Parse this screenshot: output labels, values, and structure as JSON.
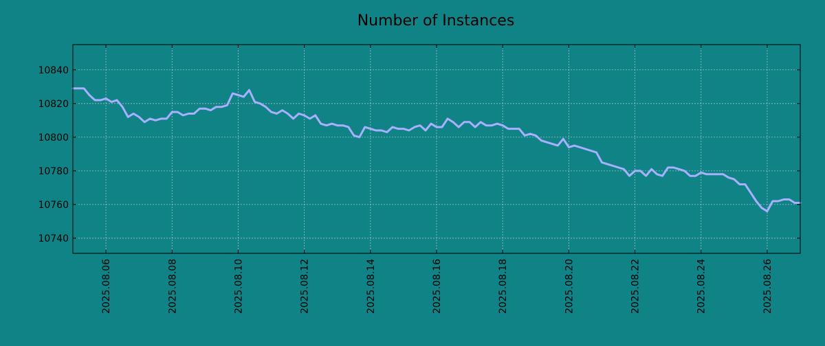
{
  "colors": {
    "background": "#108386",
    "series": "#a9b0ff"
  },
  "chart_data": {
    "type": "line",
    "title": "Number of Instances",
    "xlabel": "",
    "ylabel": "",
    "grid": true,
    "legend": "none",
    "xlim": [
      "2025-08-05",
      "2025-08-27"
    ],
    "ylim": [
      10731,
      10855
    ],
    "x_ticks": [
      "2025.08.06",
      "2025.08.08",
      "2025.08.10",
      "2025.08.12",
      "2025.08.14",
      "2025.08.16",
      "2025.08.18",
      "2025.08.20",
      "2025.08.22",
      "2025.08.24",
      "2025.08.26"
    ],
    "y_ticks": [
      10740,
      10760,
      10780,
      10800,
      10820,
      10840
    ],
    "series": [
      {
        "x": [
          "2025-08-05T00:00",
          "2025-08-05T08:00",
          "2025-08-05T12:00",
          "2025-08-05T16:00",
          "2025-08-05T20:00",
          "2025-08-06T00:00",
          "2025-08-06T04:00",
          "2025-08-06T08:00",
          "2025-08-06T12:00",
          "2025-08-06T16:00",
          "2025-08-06T20:00",
          "2025-08-07T00:00",
          "2025-08-07T04:00",
          "2025-08-07T08:00",
          "2025-08-07T12:00",
          "2025-08-07T16:00",
          "2025-08-07T20:00",
          "2025-08-08T00:00",
          "2025-08-08T04:00",
          "2025-08-08T08:00",
          "2025-08-08T12:00",
          "2025-08-08T16:00",
          "2025-08-08T20:00",
          "2025-08-09T00:00",
          "2025-08-09T04:00",
          "2025-08-09T08:00",
          "2025-08-09T12:00",
          "2025-08-09T16:00",
          "2025-08-09T20:00",
          "2025-08-10T00:00",
          "2025-08-10T04:00",
          "2025-08-10T08:00",
          "2025-08-10T12:00",
          "2025-08-10T16:00",
          "2025-08-10T20:00",
          "2025-08-11T00:00",
          "2025-08-11T04:00",
          "2025-08-11T08:00",
          "2025-08-11T12:00",
          "2025-08-11T16:00",
          "2025-08-11T20:00",
          "2025-08-12T00:00",
          "2025-08-12T04:00",
          "2025-08-12T08:00",
          "2025-08-12T12:00",
          "2025-08-12T16:00",
          "2025-08-12T20:00",
          "2025-08-13T00:00",
          "2025-08-13T04:00",
          "2025-08-13T08:00",
          "2025-08-13T12:00",
          "2025-08-13T16:00",
          "2025-08-13T20:00",
          "2025-08-14T00:00",
          "2025-08-14T04:00",
          "2025-08-14T08:00",
          "2025-08-14T12:00",
          "2025-08-14T16:00",
          "2025-08-14T20:00",
          "2025-08-15T00:00",
          "2025-08-15T04:00",
          "2025-08-15T08:00",
          "2025-08-15T12:00",
          "2025-08-15T16:00",
          "2025-08-15T20:00",
          "2025-08-16T00:00",
          "2025-08-16T04:00",
          "2025-08-16T08:00",
          "2025-08-16T12:00",
          "2025-08-16T16:00",
          "2025-08-16T20:00",
          "2025-08-17T00:00",
          "2025-08-17T04:00",
          "2025-08-17T08:00",
          "2025-08-17T12:00",
          "2025-08-17T16:00",
          "2025-08-17T20:00",
          "2025-08-18T00:00",
          "2025-08-18T04:00",
          "2025-08-18T08:00",
          "2025-08-18T12:00",
          "2025-08-18T16:00",
          "2025-08-18T20:00",
          "2025-08-19T00:00",
          "2025-08-19T04:00",
          "2025-08-19T08:00",
          "2025-08-19T12:00",
          "2025-08-19T16:00",
          "2025-08-19T20:00",
          "2025-08-20T00:00",
          "2025-08-20T04:00",
          "2025-08-20T08:00",
          "2025-08-20T12:00",
          "2025-08-20T16:00",
          "2025-08-20T20:00",
          "2025-08-21T00:00",
          "2025-08-21T04:00",
          "2025-08-21T08:00",
          "2025-08-21T12:00",
          "2025-08-21T16:00",
          "2025-08-21T20:00",
          "2025-08-22T00:00",
          "2025-08-22T04:00",
          "2025-08-22T08:00",
          "2025-08-22T12:00",
          "2025-08-22T16:00",
          "2025-08-22T20:00",
          "2025-08-23T00:00",
          "2025-08-23T04:00",
          "2025-08-23T08:00",
          "2025-08-23T12:00",
          "2025-08-23T16:00",
          "2025-08-23T20:00",
          "2025-08-24T00:00",
          "2025-08-24T04:00",
          "2025-08-24T08:00",
          "2025-08-24T12:00",
          "2025-08-24T16:00",
          "2025-08-24T20:00",
          "2025-08-25T00:00",
          "2025-08-25T04:00",
          "2025-08-25T08:00",
          "2025-08-25T12:00",
          "2025-08-25T16:00",
          "2025-08-25T20:00",
          "2025-08-26T00:00",
          "2025-08-26T04:00",
          "2025-08-26T08:00",
          "2025-08-26T12:00",
          "2025-08-26T16:00",
          "2025-08-26T20:00",
          "2025-08-27T00:00"
        ],
        "y": [
          10829,
          10829,
          10825,
          10822,
          10822,
          10823,
          10821,
          10822,
          10818,
          10812,
          10814,
          10812,
          10809,
          10811,
          10810,
          10811,
          10811,
          10815,
          10815,
          10813,
          10814,
          10814,
          10817,
          10817,
          10816,
          10818,
          10818,
          10819,
          10826,
          10825,
          10824,
          10828,
          10821,
          10820,
          10818,
          10815,
          10814,
          10816,
          10814,
          10811,
          10814,
          10813,
          10811,
          10813,
          10808,
          10807,
          10808,
          10807,
          10807,
          10806,
          10801,
          10800,
          10806,
          10805,
          10804,
          10804,
          10803,
          10806,
          10805,
          10805,
          10804,
          10806,
          10807,
          10804,
          10808,
          10806,
          10806,
          10811,
          10809,
          10806,
          10809,
          10809,
          10806,
          10809,
          10807,
          10807,
          10808,
          10807,
          10805,
          10805,
          10805,
          10801,
          10802,
          10801,
          10798,
          10797,
          10796,
          10795,
          10799,
          10794,
          10795,
          10794,
          10793,
          10792,
          10791,
          10785,
          10784,
          10783,
          10782,
          10781,
          10777,
          10780,
          10780,
          10777,
          10781,
          10778,
          10777,
          10782,
          10782,
          10781,
          10780,
          10777,
          10777,
          10779,
          10778,
          10778,
          10778,
          10778,
          10776,
          10775,
          10772,
          10772,
          10767,
          10762,
          10758,
          10756,
          10762,
          10762,
          10763,
          10763,
          10761,
          10761
        ]
      }
    ]
  }
}
